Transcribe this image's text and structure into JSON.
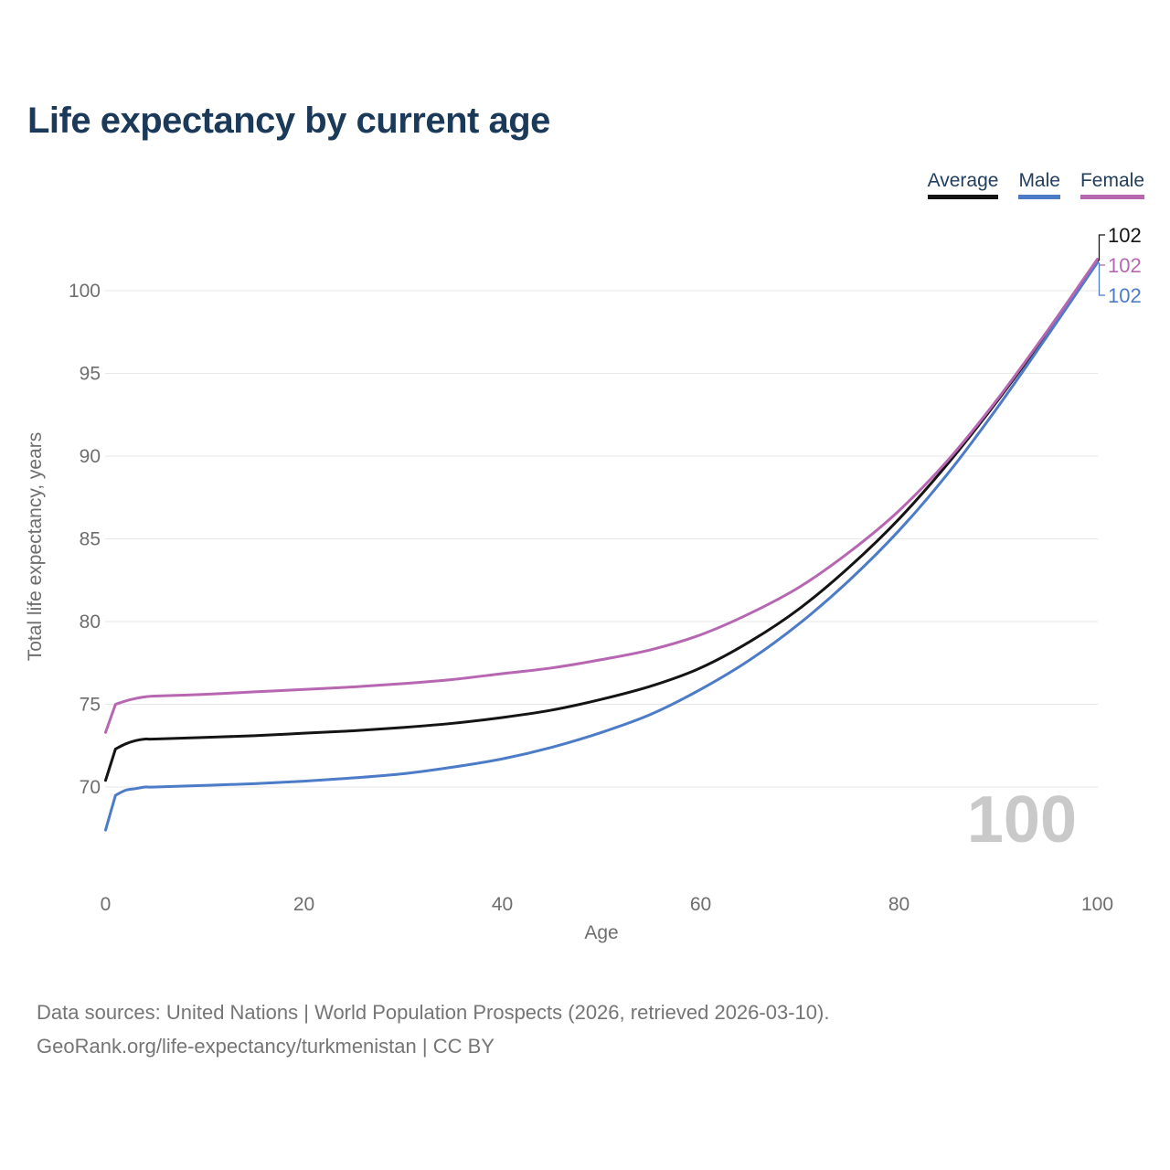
{
  "title": "Life expectancy by current age",
  "legend": [
    {
      "label": "Average",
      "color": "#141414"
    },
    {
      "label": "Male",
      "color": "#4c7bc7"
    },
    {
      "label": "Female",
      "color": "#b767b2"
    }
  ],
  "watermark": "100",
  "footer": {
    "line1": "Data sources: United Nations | World Population Prospects (2026, retrieved 2026-03-10).",
    "line2": "GeoRank.org/life-expectancy/turkmenistan | CC BY"
  },
  "chart_data": {
    "type": "line",
    "title": "Life expectancy by current age",
    "xlabel": "Age",
    "ylabel": "Total life expectancy, years",
    "xlim": [
      0,
      100
    ],
    "ylim": [
      67,
      103
    ],
    "grid": "horizontal",
    "legend_position": "top-right",
    "xticks": [
      0,
      20,
      40,
      60,
      80,
      100
    ],
    "yticks": [
      70,
      75,
      80,
      85,
      90,
      95,
      100
    ],
    "x": [
      0,
      1,
      2,
      3,
      4,
      5,
      10,
      15,
      20,
      25,
      30,
      35,
      40,
      45,
      50,
      55,
      60,
      65,
      70,
      75,
      80,
      85,
      90,
      95,
      100
    ],
    "series": [
      {
        "name": "Average",
        "color": "#141414",
        "end_label": "102",
        "values": [
          70.4,
          72.3,
          72.6,
          72.8,
          72.9,
          72.9,
          73.0,
          73.1,
          73.25,
          73.4,
          73.6,
          73.85,
          74.2,
          74.65,
          75.3,
          76.1,
          77.2,
          78.8,
          80.8,
          83.3,
          86.2,
          89.6,
          93.4,
          97.5,
          101.8
        ]
      },
      {
        "name": "Male",
        "color": "#4c7bc7",
        "end_label": "102",
        "values": [
          67.4,
          69.5,
          69.8,
          69.9,
          70.0,
          70.0,
          70.1,
          70.2,
          70.35,
          70.55,
          70.8,
          71.2,
          71.7,
          72.4,
          73.3,
          74.4,
          75.9,
          77.7,
          79.9,
          82.5,
          85.5,
          89.0,
          93.0,
          97.3,
          101.7
        ]
      },
      {
        "name": "Female",
        "color": "#b767b2",
        "end_label": "102",
        "values": [
          73.3,
          75.0,
          75.2,
          75.35,
          75.45,
          75.5,
          75.6,
          75.75,
          75.9,
          76.05,
          76.25,
          76.5,
          76.85,
          77.2,
          77.7,
          78.3,
          79.2,
          80.5,
          82.1,
          84.2,
          86.7,
          89.8,
          93.5,
          97.6,
          101.9
        ]
      }
    ]
  }
}
